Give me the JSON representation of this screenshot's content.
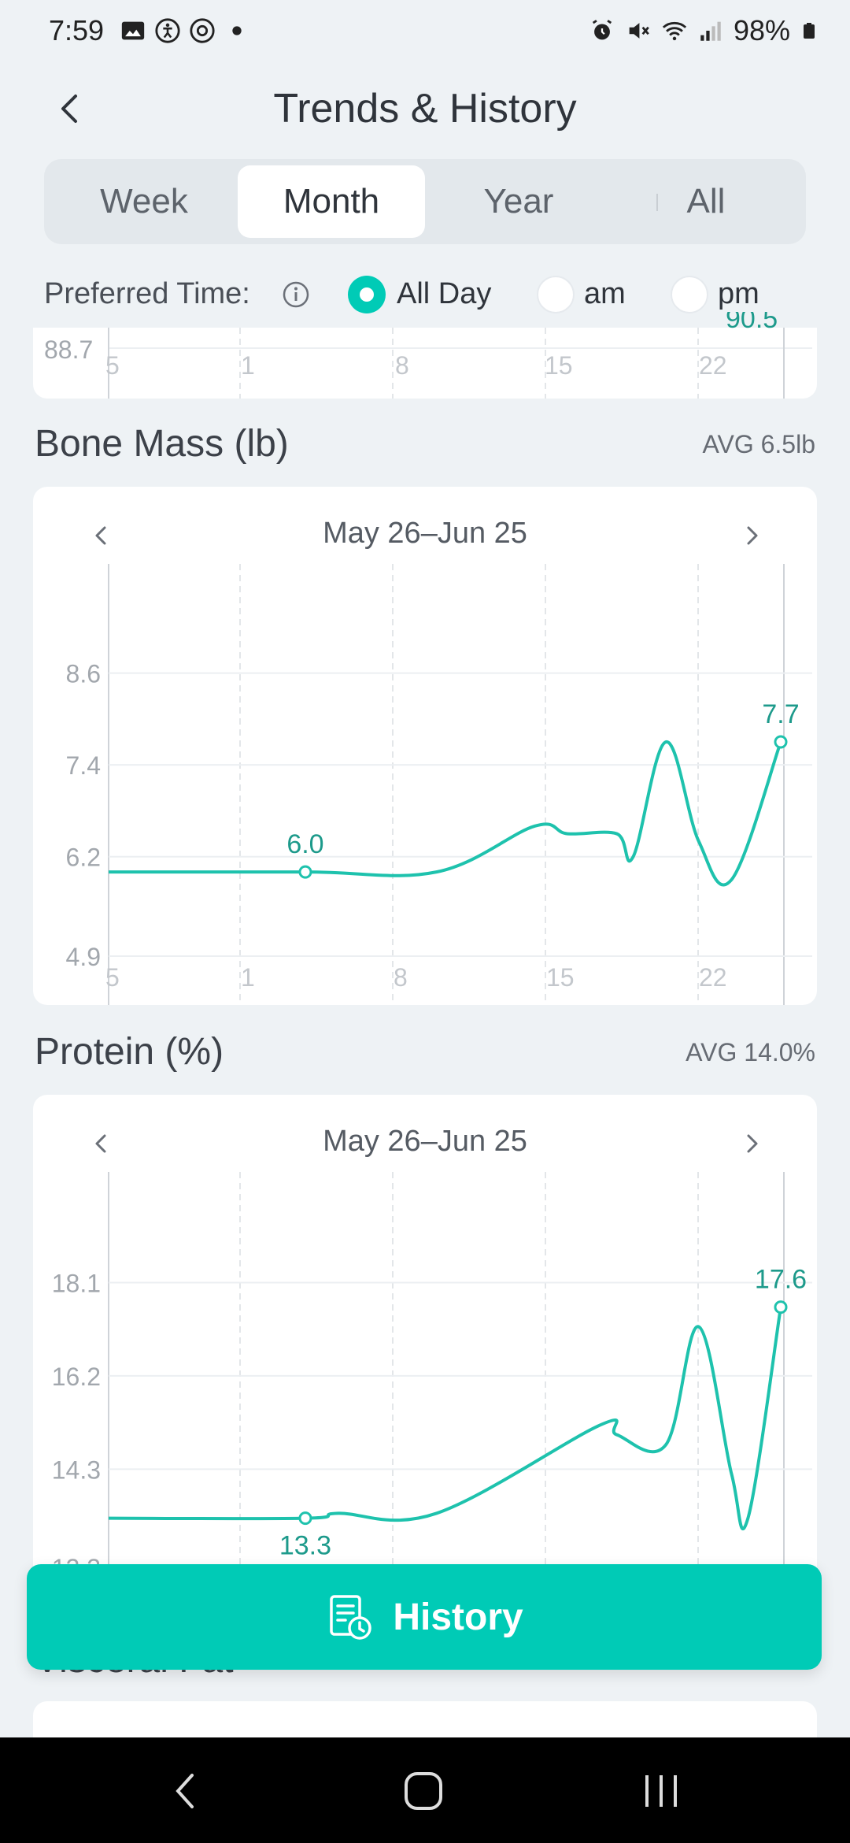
{
  "status": {
    "time": "7:59",
    "battery": "98%"
  },
  "header": {
    "title": "Trends & History"
  },
  "tabs": [
    {
      "label": "Week",
      "active": false
    },
    {
      "label": "Month",
      "active": true
    },
    {
      "label": "Year",
      "active": false
    },
    {
      "label": "All",
      "active": false
    }
  ],
  "preferred_time": {
    "label": "Preferred Time:",
    "options": [
      {
        "label": "All Day",
        "selected": true
      },
      {
        "label": "am",
        "selected": false
      },
      {
        "label": "pm",
        "selected": false
      }
    ]
  },
  "top_chart_partial": {
    "y_tick": "88.7",
    "point_label": "90.5",
    "x_ticks": [
      "5",
      "1",
      "8",
      "15",
      "22"
    ]
  },
  "bone_mass": {
    "title": "Bone Mass (lb)",
    "avg": "AVG 6.5lb",
    "range": "May 26–Jun 25"
  },
  "protein": {
    "title": "Protein (%)",
    "avg": "AVG 14.0%",
    "range": "May 26–Jun 25"
  },
  "visceral_fat": {
    "title": "Visceral Fat"
  },
  "history_button": {
    "label": "History"
  },
  "chart_data": [
    {
      "type": "line",
      "title": "Bone Mass (lb)",
      "x_tick_labels": [
        "5",
        "1",
        "8",
        "15",
        "22"
      ],
      "y_ticks": [
        4.9,
        6.2,
        7.4,
        8.6
      ],
      "ylim": [
        4.9,
        9.8
      ],
      "x_day_range": [
        0,
        30
      ],
      "series": [
        {
          "x": [
            0,
            12,
            20,
            26,
            28,
            31,
            32,
            34,
            36,
            38,
            41
          ],
          "y": [
            6.0,
            6.0,
            6.0,
            6.6,
            6.5,
            6.5,
            6.2,
            7.7,
            6.4,
            5.9,
            7.7
          ]
        }
      ],
      "labeled_points": [
        {
          "x": 12,
          "y": 6.0,
          "label": "6.0",
          "label_pos": "above"
        },
        {
          "x": 41,
          "y": 7.7,
          "label": "7.7",
          "label_pos": "above"
        }
      ],
      "grid": true
    },
    {
      "type": "line",
      "title": "Protein (%)",
      "x_tick_labels": [
        "5",
        "1",
        "8",
        "15",
        "22"
      ],
      "y_ticks": [
        12.3,
        14.3,
        16.2,
        18.1
      ],
      "ylim": [
        12.3,
        20.0
      ],
      "x_day_range": [
        0,
        30
      ],
      "series": [
        {
          "x": [
            0,
            12,
            14,
            20,
            30,
            31,
            34,
            36,
            38,
            39,
            41
          ],
          "y": [
            13.3,
            13.3,
            13.4,
            13.4,
            15.2,
            15.0,
            14.8,
            17.2,
            14.2,
            13.3,
            17.6
          ]
        }
      ],
      "labeled_points": [
        {
          "x": 12,
          "y": 13.3,
          "label": "13.3",
          "label_pos": "below"
        },
        {
          "x": 41,
          "y": 17.6,
          "label": "17.6",
          "label_pos": "above"
        }
      ],
      "grid": true
    }
  ],
  "colors": {
    "accent": "#00cbb6",
    "line": "#1ec2ad",
    "label": "#1d9a8b"
  }
}
